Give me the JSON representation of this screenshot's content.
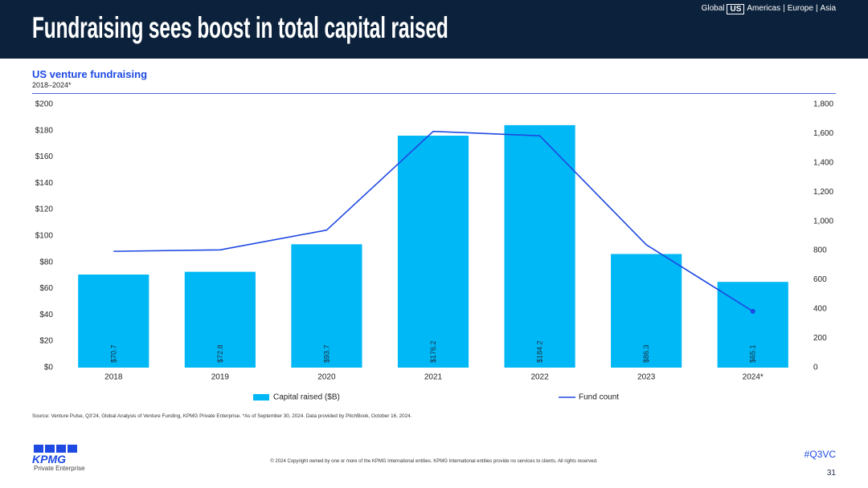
{
  "header": {
    "title": "Fundraising sees boost in total capital raised",
    "nav": {
      "global": "Global",
      "current": "US",
      "items": [
        "Americas",
        "Europe",
        "Asia"
      ]
    }
  },
  "chart_data": {
    "type": "bar",
    "title": "US venture fundraising",
    "subtitle": "2018–2024*",
    "categories": [
      "2018",
      "2019",
      "2020",
      "2021",
      "2022",
      "2023",
      "2024*"
    ],
    "series": [
      {
        "name": "Capital raised ($B)",
        "type": "bar",
        "axis": "left",
        "color": "#00b8f5",
        "values": [
          70.7,
          72.8,
          93.7,
          176.2,
          184.2,
          86.3,
          65.1
        ],
        "data_labels": [
          "$70.7",
          "$72.8",
          "$93.7",
          "$176.2",
          "$184.2",
          "$86.3",
          "$65.1"
        ]
      },
      {
        "name": "Fund count",
        "type": "line",
        "axis": "right",
        "color": "#1e49e2",
        "values": [
          795,
          805,
          940,
          1615,
          1585,
          840,
          385
        ]
      }
    ],
    "ylim": [
      0,
      200
    ],
    "y_tick_labels": [
      "$0",
      "$20",
      "$40",
      "$60",
      "$80",
      "$100",
      "$120",
      "$140",
      "$160",
      "$180",
      "$200"
    ],
    "y2lim": [
      0,
      1800
    ],
    "y2_tick_labels": [
      "0",
      "200",
      "400",
      "600",
      "800",
      "1,000",
      "1,200",
      "1,400",
      "1,600",
      "1,800"
    ],
    "grid": false,
    "legend": "bottom"
  },
  "source": "Source: Venture Pulse, Q3'24, Global Analysis of Venture Funding, KPMG Private Enterprise. *As of September 30, 2024. Data provided by PitchBook, October 16, 2024.",
  "footer": {
    "logo_text": "KPMG",
    "logo_sub": "Private Enterprise",
    "copyright": "© 2024 Copyright owned by one or more of the KPMG International entities. KPMG International entities provide no services to clients. All rights reserved.",
    "hashtag": "#Q3VC",
    "page_number": "31"
  },
  "colors": {
    "header_bg": "#0c223c",
    "accent": "#1e49e2",
    "bar": "#00b8f5"
  }
}
